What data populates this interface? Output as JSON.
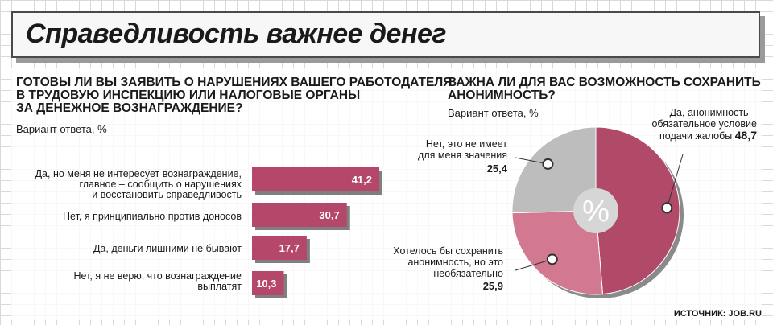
{
  "title": "Справедливость важнее денег",
  "left": {
    "question": [
      "Готовы ли вы заявить о нарушениях вашего работодателя",
      "в трудовую инспекцию или налоговые органы",
      "за денежное вознаграждение?"
    ],
    "subtitle": "Вариант ответа, %"
  },
  "right": {
    "question": [
      "Важна ли для вас возможность сохранить",
      "анонимность?"
    ],
    "subtitle": "Вариант ответа, %",
    "center_symbol": "%"
  },
  "source": "ИСТОЧНИК: JOB.RU",
  "colors": {
    "bar": "#b4476a",
    "bar_shadow": "#7f7f7f",
    "pie_dark": "#b04a68",
    "pie_light": "#d27890",
    "pie_gray": "#bdbdbd",
    "pie_hole": "#d6d6d6"
  },
  "chart_data": [
    {
      "type": "bar",
      "orientation": "horizontal",
      "categories": [
        "Да, но меня не интересует вознаграждение, главное – сообщить о нарушениях и восстановить справедливость",
        "Нет, я принципиально против доносов",
        "Да, деньги лишними не бывают",
        "Нет, я не верю, что вознаграждение выплатят"
      ],
      "category_lines": [
        [
          "Да, но меня не интересует вознаграждение,",
          "главное – сообщить о нарушениях",
          "и восстановить справедливость"
        ],
        [
          "Нет, я принципиально против доносов"
        ],
        [
          "Да, деньги лишними не бывают"
        ],
        [
          "Нет, я не верю, что вознаграждение",
          "выплатят"
        ]
      ],
      "values": [
        41.2,
        30.7,
        17.7,
        10.3
      ],
      "value_labels": [
        "41,2",
        "30,7",
        "17,7",
        "10,3"
      ]
    },
    {
      "type": "pie",
      "donut": true,
      "labels": [
        "Да, анонимность – обязательное условие подачи жалобы",
        "Хотелось бы сохранить анонимность, но это необязательно",
        "Нет, это не имеет для меня значения"
      ],
      "label_lines": [
        [
          "Да, анонимность –",
          "обязательное условие",
          "подачи жалобы"
        ],
        [
          "Хотелось бы сохранить",
          "анонимность, но это",
          "необязательно"
        ],
        [
          "Нет, это не имеет",
          "для меня значения"
        ]
      ],
      "values": [
        48.7,
        25.9,
        25.4
      ],
      "value_labels": [
        "48,7",
        "25,9",
        "25,4"
      ]
    }
  ]
}
